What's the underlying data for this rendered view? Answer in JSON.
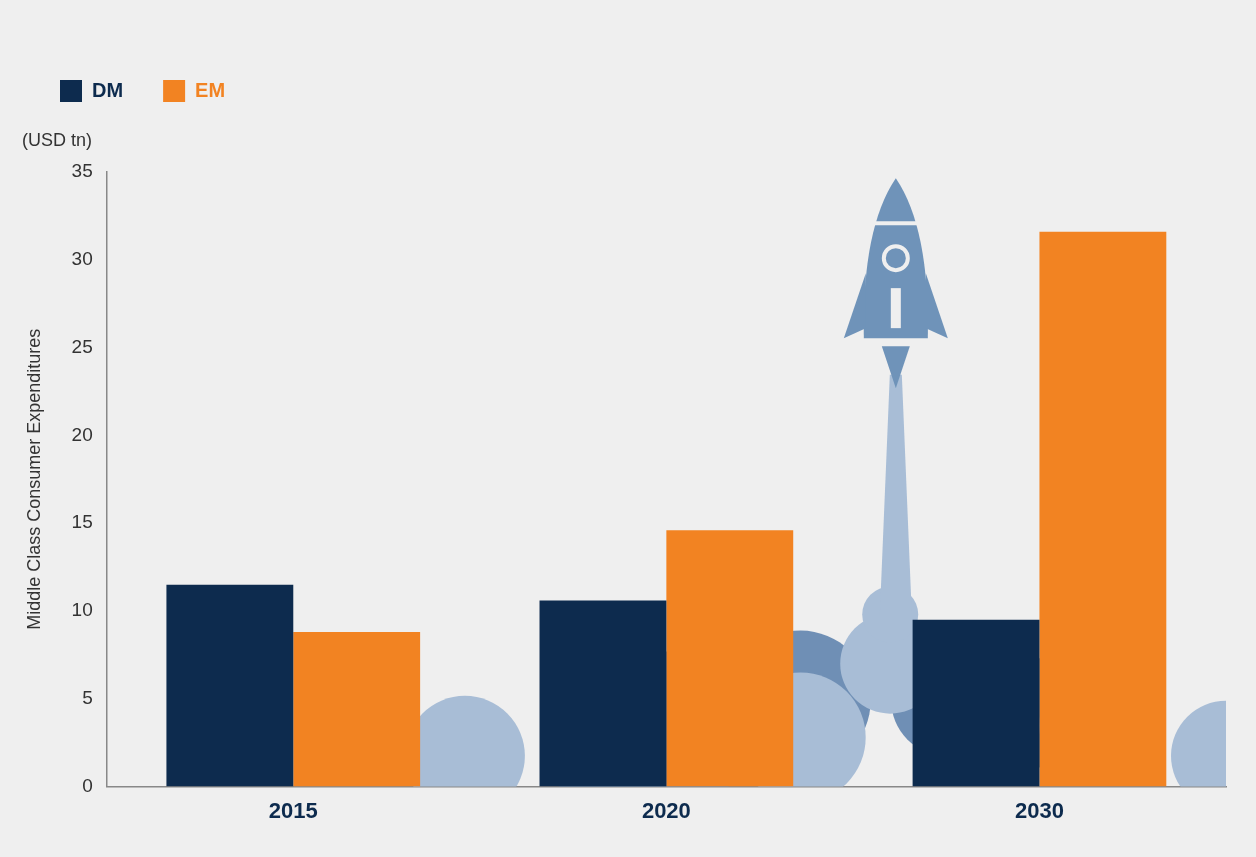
{
  "chart_data": {
    "type": "bar",
    "categories": [
      "2015",
      "2020",
      "2030"
    ],
    "series": [
      {
        "name": "DM",
        "color": "#0d2b4e",
        "values": [
          11.5,
          10.6,
          9.5
        ]
      },
      {
        "name": "EM",
        "color": "#f28322",
        "values": [
          8.8,
          14.6,
          31.6
        ]
      }
    ],
    "y_label": "Middle Class Consumer Expenditures",
    "annotations": [
      "(USD tn)"
    ],
    "ylim": [
      0,
      35
    ],
    "yticks": [
      0,
      5,
      10,
      15,
      20,
      25,
      30,
      35
    ],
    "grid": false,
    "legend": "top"
  }
}
